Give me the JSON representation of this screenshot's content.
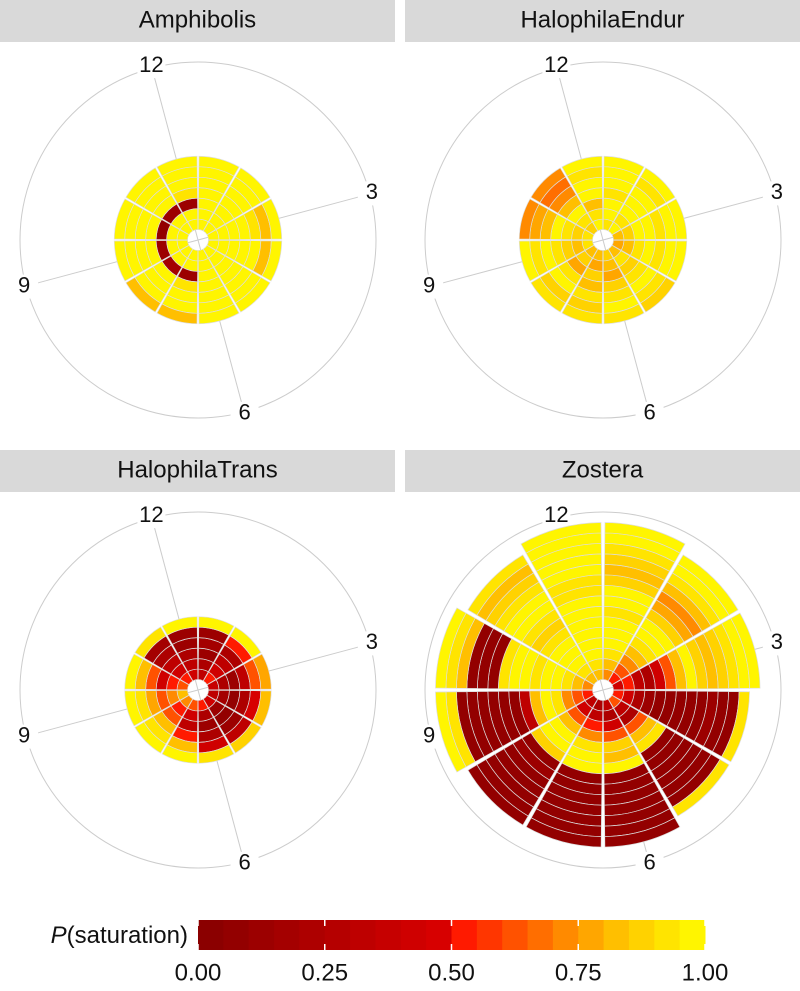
{
  "chart_data": [
    {
      "type": "polar",
      "title": "Amphibolis",
      "xlim": [
        0,
        12
      ],
      "start_angle": -15,
      "ylim": [
        -1,
        16
      ],
      "xticks": [
        {
          "value": 0,
          "label": "12"
        },
        3,
        6,
        9
      ],
      "x": [
        0,
        1,
        2,
        3,
        4,
        5,
        6,
        7,
        8,
        9,
        10,
        11
      ],
      "values": [
        [
          1,
          1,
          0.1,
          0.9,
          1,
          1,
          1
        ],
        [
          1,
          1,
          1,
          1,
          1,
          1,
          1
        ],
        [
          1,
          1,
          1,
          1,
          1,
          1,
          1
        ],
        [
          1,
          1,
          1,
          1,
          0.9,
          0.8,
          1
        ],
        [
          1,
          1,
          1,
          1,
          1,
          0.8,
          1
        ],
        [
          1,
          1,
          1,
          1,
          1,
          1,
          1
        ],
        [
          1,
          1,
          1,
          1,
          1,
          1,
          1
        ],
        [
          1,
          1,
          0.1,
          0.9,
          1,
          1,
          0.8
        ],
        [
          1,
          1,
          0.15,
          1,
          1,
          1,
          0.8
        ],
        [
          1,
          1,
          0.1,
          1,
          1,
          1,
          1
        ],
        [
          1,
          1,
          0.05,
          1,
          1,
          1,
          1
        ],
        [
          1,
          1,
          0.1,
          0.95,
          1,
          1,
          1
        ]
      ]
    },
    {
      "type": "polar",
      "title": "HalophilaEndur",
      "xlim": [
        0,
        12
      ],
      "start_angle": -15,
      "ylim": [
        -1,
        16
      ],
      "xticks": [
        {
          "value": 0,
          "label": "12"
        },
        3,
        6,
        9
      ],
      "x": [
        0,
        1,
        2,
        3,
        4,
        5,
        6,
        7,
        8,
        9,
        10,
        11
      ],
      "values": [
        [
          1,
          0.9,
          0.8,
          1,
          1,
          0.9,
          1
        ],
        [
          0.9,
          1,
          1,
          0.9,
          1,
          1,
          1
        ],
        [
          1,
          0.9,
          1,
          1,
          1,
          0.9,
          1
        ],
        [
          0.8,
          0.85,
          1,
          1,
          0.9,
          1,
          1
        ],
        [
          0.75,
          0.8,
          0.9,
          1,
          0.9,
          1,
          1
        ],
        [
          0.8,
          0.9,
          0.85,
          0.9,
          1,
          0.9,
          0.85
        ],
        [
          0.85,
          0.8,
          0.75,
          0.85,
          0.9,
          1,
          0.9
        ],
        [
          0.8,
          0.75,
          0.85,
          0.8,
          0.9,
          0.85,
          0.9
        ],
        [
          0.8,
          0.85,
          0.75,
          0.9,
          1,
          0.85,
          0.9
        ],
        [
          0.9,
          0.8,
          0.85,
          0.9,
          1,
          0.9,
          0.95
        ],
        [
          0.9,
          0.85,
          0.9,
          1,
          0.8,
          0.75,
          0.7
        ],
        [
          0.85,
          0.9,
          1,
          0.8,
          0.7,
          0.65,
          0.7
        ]
      ]
    },
    {
      "type": "polar",
      "title": "HalophilaTrans",
      "xlim": [
        0,
        12
      ],
      "start_angle": -15,
      "ylim": [
        -1,
        16
      ],
      "xticks": [
        {
          "value": 0,
          "label": "12"
        },
        3,
        6,
        9
      ],
      "x": [
        0,
        1,
        2,
        3,
        4,
        5,
        6,
        7,
        8,
        9,
        10,
        11
      ],
      "values": [
        [
          0.4,
          0.3,
          0.2,
          0.1,
          0.1,
          1
        ],
        [
          0.3,
          0.2,
          0.1,
          0.15,
          0.1,
          0.95
        ],
        [
          0.5,
          0.4,
          0.3,
          0.2,
          0.5,
          1
        ],
        [
          0.35,
          0.2,
          0.1,
          0.3,
          0.6,
          0.75
        ],
        [
          0.3,
          0.15,
          0.05,
          0.2,
          0.45,
          0.8
        ],
        [
          0.4,
          0.1,
          0.05,
          0.1,
          0.3,
          0.85
        ],
        [
          0.5,
          0.2,
          0.1,
          0.2,
          0.4,
          0.9
        ],
        [
          0.6,
          0.4,
          0.3,
          0.5,
          0.8,
          0.95
        ],
        [
          0.7,
          0.5,
          0.6,
          0.8,
          0.9,
          1
        ],
        [
          0.8,
          0.7,
          0.6,
          0.75,
          0.9,
          1
        ],
        [
          0.6,
          0.5,
          0.4,
          0.6,
          0.8,
          1
        ],
        [
          0.5,
          0.4,
          0.3,
          0.2,
          0.15,
          0.9
        ]
      ]
    },
    {
      "type": "polar",
      "title": "Zostera",
      "xlim": [
        0,
        12
      ],
      "start_angle": -15,
      "ylim": [
        -1,
        16
      ],
      "xticks": [
        {
          "value": 0,
          "label": "12"
        },
        3,
        6,
        9
      ],
      "x": [
        0,
        1,
        2,
        3,
        4,
        5,
        6,
        7,
        8,
        9,
        10,
        11
      ],
      "values": [
        [
          0.8,
          0.9,
          0.95,
          1,
          1,
          1,
          1,
          0.95,
          0.9,
          0.9,
          1,
          1,
          1,
          0.95,
          1
        ],
        [
          0.7,
          0.8,
          0.9,
          1,
          1,
          0.95,
          0.9,
          1,
          1,
          0.85,
          0.8,
          0.85,
          0.9,
          0.95,
          1
        ],
        [
          0.5,
          0.6,
          0.7,
          0.8,
          0.9,
          1,
          0.95,
          0.85,
          0.75,
          0.7,
          0.8,
          0.9,
          1,
          1
        ],
        [
          0.4,
          0.5,
          0.3,
          0.2,
          0.4,
          0.6,
          0.8,
          0.95,
          0.85,
          0.8,
          0.85,
          0.9,
          0.95,
          1
        ],
        [
          0.5,
          0.4,
          0.2,
          0.1,
          0.05,
          0.05,
          0.05,
          0.05,
          0.05,
          0.1,
          0.05,
          0.05,
          0.9
        ],
        [
          0.6,
          0.3,
          0.2,
          0.6,
          0.8,
          0.9,
          0.05,
          0.05,
          0.05,
          0.05,
          0.05,
          0.05,
          0.9
        ],
        [
          0.3,
          0.2,
          0.4,
          0.6,
          0.85,
          0.8,
          0.95,
          0.05,
          0.05,
          0.05,
          0.05,
          0.05,
          0.05,
          0.05
        ],
        [
          0.2,
          0.3,
          0.5,
          0.7,
          0.9,
          1,
          0.95,
          0.05,
          0.05,
          0.05,
          0.05,
          0.05,
          0.05,
          0.05
        ],
        [
          0.3,
          0.4,
          0.6,
          0.8,
          0.95,
          1,
          0.85,
          0.05,
          0.1,
          0.05,
          0.05,
          0.05,
          0.05,
          0.05
        ],
        [
          0.5,
          0.6,
          0.7,
          0.9,
          1,
          0.8,
          0.3,
          0.05,
          0.05,
          0.05,
          0.05,
          0.05,
          0.05,
          0.9,
          1
        ],
        [
          0.7,
          0.8,
          0.9,
          1,
          0.95,
          0.9,
          1,
          1,
          0.9,
          0.05,
          0.05,
          0.05,
          0.8,
          0.9,
          1
        ],
        [
          0.8,
          0.9,
          1,
          0.95,
          1,
          0.9,
          0.85,
          0.9,
          0.95,
          1,
          0.9,
          0.85,
          0.8,
          0.9
        ]
      ]
    }
  ],
  "colorbar": {
    "title": [
      "P",
      "(saturation)"
    ],
    "lim": [
      0,
      1
    ],
    "ticks": [
      {
        "value": 0,
        "label": "0.00"
      },
      {
        "value": 0.25,
        "label": "0.25"
      },
      {
        "value": 0.5,
        "label": "0.50"
      },
      {
        "value": 0.75,
        "label": "0.75"
      },
      {
        "value": 1,
        "label": "1.00"
      }
    ],
    "colors": [
      "#8b0000",
      "#930000",
      "#9c0000",
      "#a40000",
      "#ad0000",
      "#b50000",
      "#be0000",
      "#c60000",
      "#cf0000",
      "#d70000",
      "#ff1a00",
      "#ff3600",
      "#ff5200",
      "#ff6e00",
      "#ff8a00",
      "#ffa600",
      "#ffbf00",
      "#ffd200",
      "#ffe400",
      "#fff500"
    ]
  }
}
